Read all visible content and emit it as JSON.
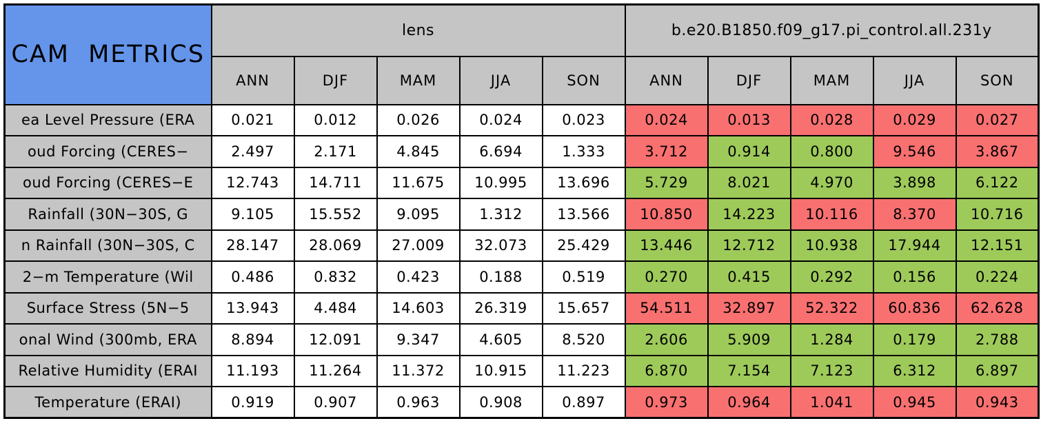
{
  "title": "CAM METRICS",
  "columns": [
    "ANN",
    "DJF",
    "MAM",
    "JJA",
    "SON"
  ],
  "groups": [
    {
      "label": "lens"
    },
    {
      "label": "b.e20.B1850.f09_g17.pi_control.all.231y"
    }
  ],
  "colors": {
    "title_blue": "#6495EB",
    "header_gray": "#C5C5C5",
    "label_gray": "#C5C5C5",
    "white": "#FFFFFF",
    "red": "#F97070",
    "green": "#9ECA5A",
    "border": "#000000"
  },
  "rows": [
    {
      "label": "ea Level Pressure (ERA",
      "lens": [
        "0.021",
        "0.012",
        "0.026",
        "0.024",
        "0.023"
      ],
      "control": {
        "values": [
          "0.024",
          "0.013",
          "0.028",
          "0.029",
          "0.027"
        ],
        "colors": [
          "red",
          "red",
          "red",
          "red",
          "red"
        ]
      }
    },
    {
      "label": "oud Forcing (CERES−",
      "lens": [
        "2.497",
        "2.171",
        "4.845",
        "6.694",
        "1.333"
      ],
      "control": {
        "values": [
          "3.712",
          "0.914",
          "0.800",
          "9.546",
          "3.867"
        ],
        "colors": [
          "red",
          "green",
          "green",
          "red",
          "red"
        ]
      }
    },
    {
      "label": "oud Forcing (CERES−E",
      "lens": [
        "12.743",
        "14.711",
        "11.675",
        "10.995",
        "13.696"
      ],
      "control": {
        "values": [
          "5.729",
          "8.021",
          "4.970",
          "3.898",
          "6.122"
        ],
        "colors": [
          "green",
          "green",
          "green",
          "green",
          "green"
        ]
      }
    },
    {
      "label": "Rainfall (30N−30S, G",
      "lens": [
        "9.105",
        "15.552",
        "9.095",
        "1.312",
        "13.566"
      ],
      "control": {
        "values": [
          "10.850",
          "14.223",
          "10.116",
          "8.370",
          "10.716"
        ],
        "colors": [
          "red",
          "green",
          "red",
          "red",
          "green"
        ]
      }
    },
    {
      "label": "n Rainfall (30N−30S, C",
      "lens": [
        "28.147",
        "28.069",
        "27.009",
        "32.073",
        "25.429"
      ],
      "control": {
        "values": [
          "13.446",
          "12.712",
          "10.938",
          "17.944",
          "12.151"
        ],
        "colors": [
          "green",
          "green",
          "green",
          "green",
          "green"
        ]
      }
    },
    {
      "label": "2−m Temperature (Wil",
      "lens": [
        "0.486",
        "0.832",
        "0.423",
        "0.188",
        "0.519"
      ],
      "control": {
        "values": [
          "0.270",
          "0.415",
          "0.292",
          "0.156",
          "0.224"
        ],
        "colors": [
          "green",
          "green",
          "green",
          "green",
          "green"
        ]
      }
    },
    {
      "label": "Surface Stress (5N−5",
      "lens": [
        "13.943",
        "4.484",
        "14.603",
        "26.319",
        "15.657"
      ],
      "control": {
        "values": [
          "54.511",
          "32.897",
          "52.322",
          "60.836",
          "62.628"
        ],
        "colors": [
          "red",
          "red",
          "red",
          "red",
          "red"
        ]
      }
    },
    {
      "label": "onal Wind (300mb, ERA",
      "lens": [
        "8.894",
        "12.091",
        "9.347",
        "4.605",
        "8.520"
      ],
      "control": {
        "values": [
          "2.606",
          "5.909",
          "1.284",
          "0.179",
          "2.788"
        ],
        "colors": [
          "green",
          "green",
          "green",
          "green",
          "green"
        ]
      }
    },
    {
      "label": "Relative Humidity (ERAI",
      "lens": [
        "11.193",
        "11.264",
        "11.372",
        "10.915",
        "11.223"
      ],
      "control": {
        "values": [
          "6.870",
          "7.154",
          "7.123",
          "6.312",
          "6.897"
        ],
        "colors": [
          "green",
          "green",
          "green",
          "green",
          "green"
        ]
      }
    },
    {
      "label": "Temperature (ERAI)",
      "lens": [
        "0.919",
        "0.907",
        "0.963",
        "0.908",
        "0.897"
      ],
      "control": {
        "values": [
          "0.973",
          "0.964",
          "1.041",
          "0.945",
          "0.943"
        ],
        "colors": [
          "red",
          "red",
          "red",
          "red",
          "red"
        ]
      }
    }
  ],
  "chart_data": {
    "type": "table",
    "title": "CAM METRICS",
    "column_groups": [
      "lens",
      "b.e20.B1850.f09_g17.pi_control.all.231y"
    ],
    "columns": [
      "ANN",
      "DJF",
      "MAM",
      "JJA",
      "SON"
    ],
    "row_labels": [
      "ea Level Pressure (ERA",
      "oud Forcing (CERES−",
      "oud Forcing (CERES−E",
      "Rainfall (30N−30S, G",
      "n Rainfall (30N−30S, C",
      "2−m Temperature (Wil",
      "Surface Stress (5N−5",
      "onal Wind (300mb, ERA",
      "Relative Humidity (ERAI",
      "Temperature (ERAI)"
    ],
    "series": [
      {
        "name": "lens",
        "values": [
          [
            0.021,
            0.012,
            0.026,
            0.024,
            0.023
          ],
          [
            2.497,
            2.171,
            4.845,
            6.694,
            1.333
          ],
          [
            12.743,
            14.711,
            11.675,
            10.995,
            13.696
          ],
          [
            9.105,
            15.552,
            9.095,
            1.312,
            13.566
          ],
          [
            28.147,
            28.069,
            27.009,
            32.073,
            25.429
          ],
          [
            0.486,
            0.832,
            0.423,
            0.188,
            0.519
          ],
          [
            13.943,
            4.484,
            14.603,
            26.319,
            15.657
          ],
          [
            8.894,
            12.091,
            9.347,
            4.605,
            8.52
          ],
          [
            11.193,
            11.264,
            11.372,
            10.915,
            11.223
          ],
          [
            0.919,
            0.907,
            0.963,
            0.908,
            0.897
          ]
        ]
      },
      {
        "name": "b.e20.B1850.f09_g17.pi_control.all.231y",
        "values": [
          [
            0.024,
            0.013,
            0.028,
            0.029,
            0.027
          ],
          [
            3.712,
            0.914,
            0.8,
            9.546,
            3.867
          ],
          [
            5.729,
            8.021,
            4.97,
            3.898,
            6.122
          ],
          [
            10.85,
            14.223,
            10.116,
            8.37,
            10.716
          ],
          [
            13.446,
            12.712,
            10.938,
            17.944,
            12.151
          ],
          [
            0.27,
            0.415,
            0.292,
            0.156,
            0.224
          ],
          [
            54.511,
            32.897,
            52.322,
            60.836,
            62.628
          ],
          [
            2.606,
            5.909,
            1.284,
            0.179,
            2.788
          ],
          [
            6.87,
            7.154,
            7.123,
            6.312,
            6.897
          ],
          [
            0.973,
            0.964,
            1.041,
            0.945,
            0.943
          ]
        ],
        "cell_colors": [
          [
            "red",
            "red",
            "red",
            "red",
            "red"
          ],
          [
            "red",
            "green",
            "green",
            "red",
            "red"
          ],
          [
            "green",
            "green",
            "green",
            "green",
            "green"
          ],
          [
            "red",
            "green",
            "red",
            "red",
            "green"
          ],
          [
            "green",
            "green",
            "green",
            "green",
            "green"
          ],
          [
            "green",
            "green",
            "green",
            "green",
            "green"
          ],
          [
            "red",
            "red",
            "red",
            "red",
            "red"
          ],
          [
            "green",
            "green",
            "green",
            "green",
            "green"
          ],
          [
            "green",
            "green",
            "green",
            "green",
            "green"
          ],
          [
            "red",
            "red",
            "red",
            "red",
            "red"
          ]
        ]
      }
    ],
    "legend_position": "none",
    "grid": true
  }
}
